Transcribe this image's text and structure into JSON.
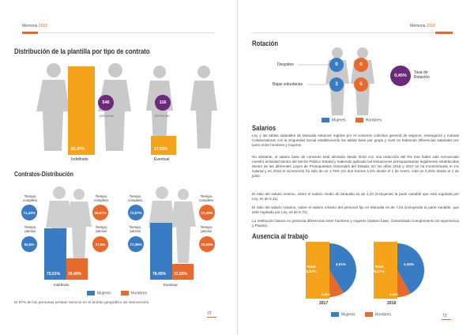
{
  "colors": {
    "blue": "#3a7cc3",
    "orange": "#e8692c",
    "purple": "#6b2a7a",
    "yellow": "#f5a31a",
    "grey": "#c9c9c9"
  },
  "left": {
    "header": {
      "text": "Memoria",
      "year": "2018"
    },
    "title": "Distribución de la plantilla por tipo de contrato",
    "indefinido": {
      "count": "546",
      "unit": "personas",
      "pct": "82,47%",
      "label": "Indefinido"
    },
    "eventual": {
      "count": "116",
      "unit": "personas",
      "pct": "17,53%",
      "label": "Eventual"
    },
    "contracts_title": "Contratos-Distribución",
    "group1": {
      "label": "Indefinido",
      "women_full_label": "Tiempo completo",
      "women_full": "71,43%",
      "women_part_label": "Tiempo parcial",
      "women_part": "62,5%",
      "men_full_label": "Tiempo completo",
      "men_full": "28,57%",
      "men_part_label": "Tiempo parcial",
      "men_part": "37,5%",
      "bar_women": "70,51%",
      "bar_men": "29,49%"
    },
    "group2": {
      "label": "Eventual",
      "women_full_label": "Tiempo completo",
      "women_full": "72,57%",
      "women_part_label": "Tiempo parcial",
      "women_part": "77,36%",
      "men_full_label": "Tiempo completo",
      "men_full": "27,43%",
      "men_part_label": "Tiempo parcial",
      "men_part": "22,64%",
      "bar_women": "78,45%",
      "bar_men": "21,55%"
    },
    "legend": {
      "women": "Mujeres",
      "men": "Hombres"
    },
    "footnote": "El 97% de las personas prestan servicio en el ámbito geográfico de intervención.",
    "page_number": "72"
  },
  "right": {
    "header": {
      "text": "Memoria",
      "year": "2018"
    },
    "rotation_title": "Rotación",
    "despidos_label": "Despidos",
    "bajas_label": "Bajas voluntarias",
    "despidos_women": "0",
    "despidos_men": "0",
    "bajas_women": "3",
    "bajas_men": "0",
    "rate_value": "0,45%",
    "rate_label": "Tasa de Rotación",
    "legend": {
      "women": "Mujeres",
      "men": "Hombres"
    },
    "salarios_title": "Salarios",
    "salarios_p1": "Ley y las tablas salariales de Mutualia estamos regidos por el convenio colectivo general de seguros, reaseguros y mutuas Colaboradoras con la Seguridad Social estableciendo las tablas base por grupo y nivel no habiendo diferencias salariales por tanto entre hombres y mujeres.",
    "salarios_p2": "No obstante, el salario base de convenio está afectado desde 2010 con una reducción del 5% tras haber sido enmarcado nuestro actividad dentro del Sector Público Estatal y habiendo aplicado las limitaciones presupuestarias legalmente establecidas dentro de las diferentes Leyes de Presupuestos Generales del Estado. En los años 2018 y 2017 se ha incrementado el 1% salarial y en 2018 el incremento ha sido de un 1,75% (en dos tramos 1,5% desde el 1 de enero, más un 0,25% desde el 1 de julio).",
    "salarios_p3": "El ratio del salario mínimo, sobre el salario medio de Mutualia es de 4,10 (incluyendo la parte variable que está regulada por Ley, es de 5,11).",
    "salarios_p4": "El ratio del salario máximo, sobre el salario mínimo del personal fijo en Mutualia es de 7,04 (incluyendo la parte variable, que está regulada por Ley, es de 8,73).",
    "salarios_p5": "La retribución básica no presenta diferencias entre hombres y mujeres (Salario base, Garantizado Complemento de experiencia y Pluses).",
    "ausencia_title": "Ausencia al trabajo",
    "pies": [
      {
        "year": "2017",
        "total_label": "Total",
        "total": "4,87%",
        "women": "4,01%",
        "men": "0,86%"
      },
      {
        "year": "2018",
        "total_label": "Total",
        "total": "5,17%",
        "women": "4,34%",
        "men": "0,83%"
      }
    ],
    "page_number": "73"
  },
  "chart_data": [
    {
      "type": "bar",
      "categories": [
        "Indefinido",
        "Eventual"
      ],
      "values": [
        82.47,
        17.53
      ],
      "ylim": [
        0,
        100
      ]
    },
    {
      "type": "bar",
      "categories": [
        "Indefinido",
        "Eventual"
      ],
      "series": [
        {
          "name": "Mujeres",
          "values": [
            70.51,
            78.45
          ]
        },
        {
          "name": "Hombres",
          "values": [
            29.49,
            21.55
          ]
        }
      ],
      "ylim": [
        0,
        100
      ]
    },
    {
      "type": "pie",
      "title": "2017",
      "categories": [
        "Mujeres",
        "Hombres"
      ],
      "values": [
        4.01,
        0.86
      ]
    },
    {
      "type": "pie",
      "title": "2018",
      "categories": [
        "Mujeres",
        "Hombres"
      ],
      "values": [
        4.34,
        0.83
      ]
    }
  ]
}
